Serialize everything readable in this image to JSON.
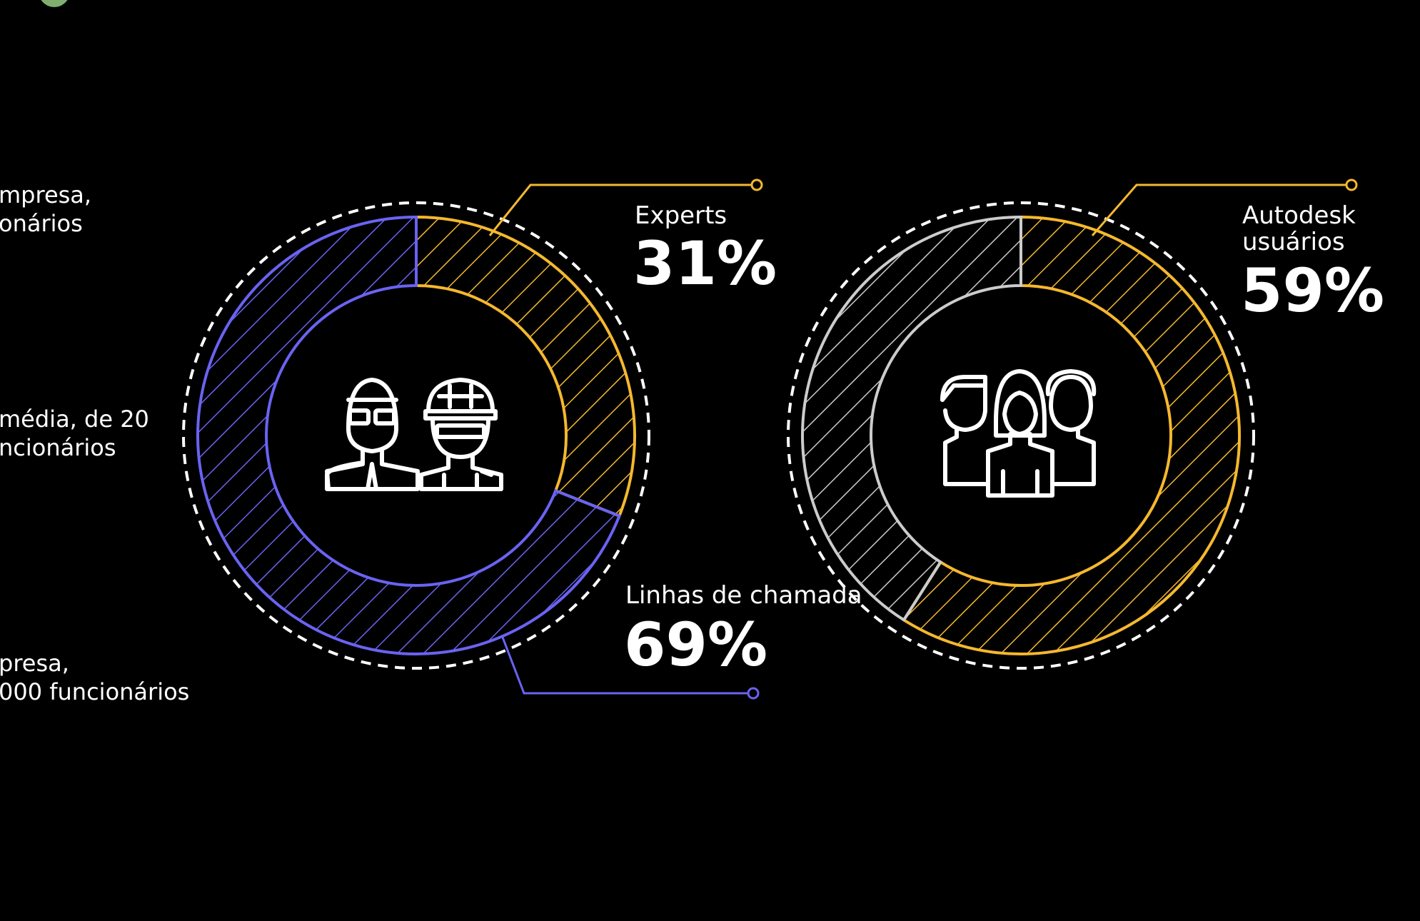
{
  "left_labels": [
    {
      "line1": "mpresa,",
      "line2": "onários"
    },
    {
      "line1": "média, de 20",
      "line2": "ncionários"
    },
    {
      "line1": "presa,",
      "line2": "000 funcionários"
    }
  ],
  "colors": {
    "background": "#000000",
    "yellow": "#f5b82e",
    "blue": "#6a63f2",
    "gray": "#cccccc",
    "white": "#ffffff",
    "green_dot": "#7fae6f"
  },
  "icons": {
    "donut1_center": "worker-pair-icon",
    "donut2_center": "user-group-icon"
  },
  "chart_data": [
    {
      "type": "pie",
      "series": [
        {
          "name": "Experts",
          "value": 31,
          "label": "31%",
          "color": "yellow"
        },
        {
          "name": "Linhas de chamada",
          "value": 69,
          "label": "69%",
          "color": "blue"
        }
      ]
    },
    {
      "type": "pie",
      "series": [
        {
          "name": "Autodesk usuários",
          "value": 59,
          "label": "59%",
          "color": "yellow"
        },
        {
          "name": "",
          "value": 41,
          "label": "",
          "color": "gray"
        }
      ]
    }
  ]
}
